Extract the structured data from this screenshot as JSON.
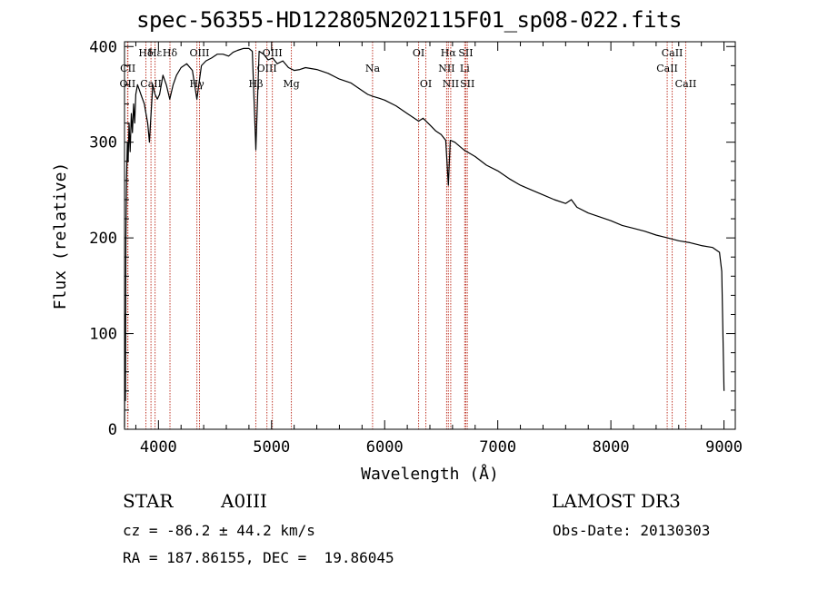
{
  "chart_data": {
    "type": "line",
    "title": "spec-56355-HD122805N202115F01_sp08-022.fits",
    "xlabel": "Wavelength (Å)",
    "ylabel": "Flux (relative)",
    "xlim": [
      3700,
      9100
    ],
    "ylim": [
      0,
      405
    ],
    "xticks": [
      4000,
      5000,
      6000,
      7000,
      8000,
      9000
    ],
    "yticks": [
      0,
      100,
      200,
      300,
      400
    ],
    "x_minor_step": 200,
    "y_minor_step": 20,
    "grid": false,
    "series": [
      {
        "name": "flux",
        "x": [
          3700,
          3705,
          3708,
          3712,
          3718,
          3725,
          3732,
          3740,
          3750,
          3760,
          3770,
          3780,
          3790,
          3800,
          3815,
          3830,
          3845,
          3860,
          3875,
          3890,
          3905,
          3920,
          3935,
          3950,
          3970,
          3990,
          4010,
          4040,
          4070,
          4100,
          4130,
          4160,
          4200,
          4250,
          4300,
          4340,
          4380,
          4420,
          4470,
          4520,
          4570,
          4620,
          4660,
          4700,
          4750,
          4800,
          4830,
          4861,
          4890,
          4930,
          4970,
          5010,
          5050,
          5100,
          5150,
          5200,
          5250,
          5300,
          5400,
          5500,
          5600,
          5700,
          5800,
          5850,
          5893,
          5950,
          6000,
          6100,
          6200,
          6300,
          6340,
          6400,
          6450,
          6500,
          6540,
          6563,
          6580,
          6620,
          6700,
          6800,
          6900,
          7000,
          7100,
          7200,
          7300,
          7400,
          7500,
          7600,
          7650,
          7700,
          7800,
          7900,
          8000,
          8100,
          8200,
          8300,
          8400,
          8500,
          8600,
          8700,
          8800,
          8900,
          8960,
          8980,
          9000
        ],
        "y": [
          2,
          120,
          30,
          200,
          260,
          300,
          280,
          320,
          290,
          330,
          310,
          340,
          320,
          350,
          360,
          355,
          350,
          345,
          340,
          330,
          320,
          300,
          330,
          360,
          350,
          345,
          350,
          370,
          360,
          345,
          360,
          370,
          378,
          382,
          375,
          345,
          380,
          385,
          388,
          392,
          392,
          390,
          394,
          396,
          398,
          398,
          395,
          292,
          395,
          392,
          386,
          388,
          382,
          385,
          378,
          375,
          376,
          378,
          376,
          372,
          366,
          362,
          354,
          350,
          348,
          346,
          344,
          338,
          330,
          322,
          325,
          318,
          312,
          308,
          302,
          255,
          302,
          300,
          292,
          285,
          276,
          270,
          262,
          255,
          250,
          245,
          240,
          236,
          240,
          232,
          226,
          222,
          218,
          213,
          210,
          207,
          203,
          200,
          197,
          195,
          192,
          190,
          185,
          165,
          40
        ]
      }
    ],
    "lines": [
      {
        "label": "Hδ",
        "x": 3889,
        "row": 0
      },
      {
        "label": "Hε",
        "x": 3970,
        "row": 0
      },
      {
        "label": "Hδ",
        "x": 4102,
        "row": 0
      },
      {
        "label": "CII",
        "x": 3730,
        "row": 1
      },
      {
        "label": "OII",
        "x": 3727,
        "row": 2
      },
      {
        "label": "CaII",
        "x": 3934,
        "row": 2
      },
      {
        "label": "OIII",
        "x": 4363,
        "row": 0
      },
      {
        "label": "Hγ",
        "x": 4340,
        "row": 2
      },
      {
        "label": "Hβ",
        "x": 4861,
        "row": 2
      },
      {
        "label": "OIII",
        "x": 4959,
        "row": 1
      },
      {
        "label": "OIII",
        "x": 5007,
        "row": 0
      },
      {
        "label": "Mg",
        "x": 5175,
        "row": 2
      },
      {
        "label": "Na",
        "x": 5893,
        "row": 1
      },
      {
        "label": "OI",
        "x": 6300,
        "row": 0
      },
      {
        "label": "OI",
        "x": 6364,
        "row": 2
      },
      {
        "label": "Hα",
        "x": 6563,
        "row": 0
      },
      {
        "label": "NII",
        "x": 6548,
        "row": 1
      },
      {
        "label": "NII",
        "x": 6584,
        "row": 2
      },
      {
        "label": "SII",
        "x": 6717,
        "row": 0
      },
      {
        "label": "Li",
        "x": 6708,
        "row": 1
      },
      {
        "label": "SII",
        "x": 6731,
        "row": 2
      },
      {
        "label": "CaII",
        "x": 8542,
        "row": 0
      },
      {
        "label": "CaII",
        "x": 8498,
        "row": 1
      },
      {
        "label": "CaII",
        "x": 8662,
        "row": 2
      }
    ]
  },
  "info": {
    "object_class": "STAR",
    "subclass": "A0III",
    "survey": "LAMOST DR3",
    "redshift": "cz = -86.2 ± 44.2 km/s",
    "obs_date": "Obs-Date: 20130303",
    "coords": "RA = 187.86155, DEC =  19.86045"
  },
  "colors": {
    "line_marker": "#c0392b",
    "spectrum": "#000000"
  }
}
